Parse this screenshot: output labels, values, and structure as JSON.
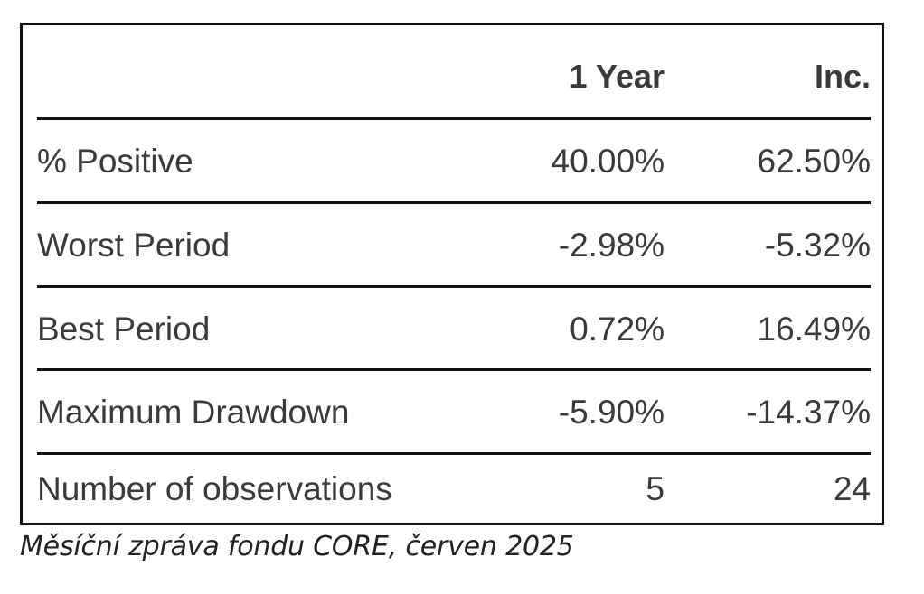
{
  "table": {
    "headers": [
      "",
      "1 Year",
      "Inc."
    ],
    "rows": [
      {
        "label": "% Positive",
        "one_year": "40.00%",
        "inc": "62.50%"
      },
      {
        "label": "Worst Period",
        "one_year": "-2.98%",
        "inc": "-5.32%"
      },
      {
        "label": "Best Period",
        "one_year": "0.72%",
        "inc": "16.49%"
      },
      {
        "label": "Maximum Drawdown",
        "one_year": "-5.90%",
        "inc": "-14.37%"
      },
      {
        "label": "Number of observations",
        "one_year": "5",
        "inc": "24"
      }
    ]
  },
  "caption": "Měsíční zpráva fondu CORE, červen 2025"
}
